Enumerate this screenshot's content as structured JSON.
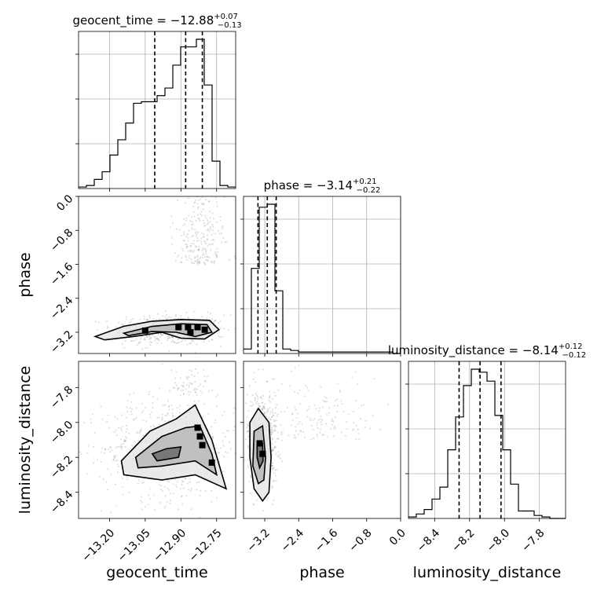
{
  "chart_data": {
    "type": "corner",
    "parameters": [
      "geocent_time",
      "phase",
      "luminosity_distance"
    ],
    "titles": {
      "geocent_time": {
        "name": "geocent_time",
        "median": "−12.88",
        "plus": "+0.07",
        "minus": "−0.13"
      },
      "phase": {
        "name": "phase",
        "median": "−3.14",
        "plus": "+0.21",
        "minus": "−0.22"
      },
      "luminosity_distance": {
        "name": "luminosity_distance",
        "median": "−8.14",
        "plus": "+0.12",
        "minus": "−0.12"
      }
    },
    "axes": {
      "geocent_time": {
        "label": "geocent_time",
        "range": [
          -13.33,
          -12.67
        ],
        "ticks": [
          -13.2,
          -13.05,
          -12.9,
          -12.75
        ],
        "tick_labels": [
          "−13.20",
          "−13.05",
          "−12.90",
          "−12.75"
        ]
      },
      "phase": {
        "label": "phase",
        "range": [
          -3.7,
          0.0
        ],
        "ticks": [
          -3.2,
          -2.4,
          -1.6,
          -0.8,
          0.0
        ],
        "tick_labels": [
          "−3.2",
          "−2.4",
          "−1.6",
          "−0.8",
          "0.0"
        ]
      },
      "luminosity_distance": {
        "label": "luminosity_distance",
        "range": [
          -8.55,
          -7.65
        ],
        "ticks": [
          -8.4,
          -8.2,
          -8.0,
          -7.8
        ],
        "tick_labels": [
          "−8.4",
          "−8.2",
          "−8.0",
          "−7.8"
        ]
      }
    },
    "histograms": {
      "geocent_time": {
        "bin_edges": [
          -13.33,
          -13.297,
          -13.264,
          -13.231,
          -13.198,
          -13.165,
          -13.132,
          -13.099,
          -13.066,
          -13.033,
          -13.0,
          -12.967,
          -12.934,
          -12.901,
          -12.868,
          -12.835,
          -12.802,
          -12.769,
          -12.736,
          -12.703,
          -12.67
        ],
        "counts": [
          0.01,
          0.02,
          0.06,
          0.11,
          0.22,
          0.32,
          0.43,
          0.56,
          0.57,
          0.57,
          0.61,
          0.66,
          0.81,
          0.93,
          0.93,
          0.98,
          0.68,
          0.18,
          0.02,
          0.01
        ],
        "quantiles": [
          -13.01,
          -12.88,
          -12.81
        ]
      },
      "phase": {
        "bin_edges": [
          -3.7,
          -3.515,
          -3.33,
          -3.145,
          -2.96,
          -2.775,
          -2.59,
          -2.405,
          -2.22,
          -2.035,
          -1.85,
          -1.665,
          -1.48,
          -1.295,
          -1.11,
          -0.925,
          -0.74,
          -0.555,
          -0.37,
          -0.185,
          0.0
        ],
        "counts": [
          0.03,
          0.57,
          0.98,
          1.0,
          0.42,
          0.03,
          0.02,
          0.01,
          0.01,
          0.01,
          0.01,
          0.01,
          0.01,
          0.01,
          0.01,
          0.01,
          0.01,
          0.01,
          0.01,
          0.0
        ],
        "quantiles": [
          -3.36,
          -3.14,
          -2.93
        ]
      },
      "luminosity_distance": {
        "bin_edges": [
          -8.55,
          -8.505,
          -8.46,
          -8.415,
          -8.37,
          -8.325,
          -8.28,
          -8.235,
          -8.19,
          -8.145,
          -8.1,
          -8.055,
          -8.01,
          -7.965,
          -7.92,
          -7.875,
          -7.83,
          -7.785,
          -7.74,
          -7.695,
          -7.65
        ],
        "counts": [
          0.01,
          0.03,
          0.06,
          0.13,
          0.21,
          0.46,
          0.68,
          0.89,
          1.0,
          0.98,
          0.92,
          0.69,
          0.46,
          0.23,
          0.05,
          0.05,
          0.02,
          0.01,
          0.0,
          0.0
        ],
        "quantiles": [
          -8.26,
          -8.14,
          -8.02
        ]
      }
    },
    "contours_2d": [
      {
        "x": "geocent_time",
        "y": "phase",
        "levels": [
          [
            [
              -13.26,
              -3.3
            ],
            [
              -13.14,
              -3.06
            ],
            [
              -13.02,
              -2.94
            ],
            [
              -12.9,
              -2.9
            ],
            [
              -12.78,
              -2.92
            ],
            [
              -12.74,
              -3.14
            ],
            [
              -12.8,
              -3.36
            ],
            [
              -12.9,
              -3.34
            ],
            [
              -12.98,
              -3.2
            ],
            [
              -13.1,
              -3.3
            ],
            [
              -13.22,
              -3.38
            ]
          ],
          [
            [
              -13.14,
              -3.22
            ],
            [
              -13.02,
              -3.06
            ],
            [
              -12.9,
              -3.0
            ],
            [
              -12.79,
              -3.02
            ],
            [
              -12.77,
              -3.2
            ],
            [
              -12.84,
              -3.3
            ],
            [
              -12.92,
              -3.2
            ],
            [
              -13.02,
              -3.18
            ],
            [
              -13.12,
              -3.28
            ]
          ]
        ],
        "dense_bins": [
          [
            -12.91,
            -3.08
          ],
          [
            -12.87,
            -3.08
          ],
          [
            -12.83,
            -3.08
          ],
          [
            -12.8,
            -3.14
          ],
          [
            -12.86,
            -3.2
          ],
          [
            -13.05,
            -3.16
          ]
        ]
      },
      {
        "x": "geocent_time",
        "y": "luminosity_distance",
        "levels": [
          [
            [
              -13.15,
              -8.22
            ],
            [
              -13.03,
              -8.05
            ],
            [
              -12.92,
              -7.98
            ],
            [
              -12.84,
              -7.9
            ],
            [
              -12.77,
              -8.1
            ],
            [
              -12.71,
              -8.38
            ],
            [
              -12.84,
              -8.3
            ],
            [
              -12.98,
              -8.33
            ],
            [
              -13.14,
              -8.3
            ]
          ],
          [
            [
              -13.09,
              -8.2
            ],
            [
              -12.98,
              -8.08
            ],
            [
              -12.88,
              -8.03
            ],
            [
              -12.82,
              -8.02
            ],
            [
              -12.77,
              -8.18
            ],
            [
              -12.75,
              -8.3
            ],
            [
              -12.84,
              -8.22
            ],
            [
              -12.98,
              -8.25
            ],
            [
              -13.08,
              -8.26
            ]
          ],
          [
            [
              -13.02,
              -8.18
            ],
            [
              -12.96,
              -8.15
            ],
            [
              -12.9,
              -8.14
            ],
            [
              -12.91,
              -8.2
            ],
            [
              -13.0,
              -8.22
            ]
          ]
        ],
        "dense_bins": [
          [
            -12.83,
            -8.03
          ],
          [
            -12.82,
            -8.08
          ],
          [
            -12.81,
            -8.13
          ],
          [
            -12.77,
            -8.23
          ]
        ]
      },
      {
        "x": "phase",
        "y": "luminosity_distance",
        "levels": [
          [
            [
              -3.55,
              -8.0
            ],
            [
              -3.35,
              -7.92
            ],
            [
              -3.1,
              -8.0
            ],
            [
              -3.05,
              -8.2
            ],
            [
              -3.1,
              -8.4
            ],
            [
              -3.25,
              -8.45
            ],
            [
              -3.45,
              -8.38
            ],
            [
              -3.55,
              -8.2
            ]
          ],
          [
            [
              -3.45,
              -8.05
            ],
            [
              -3.25,
              -8.02
            ],
            [
              -3.18,
              -8.2
            ],
            [
              -3.22,
              -8.33
            ],
            [
              -3.35,
              -8.35
            ],
            [
              -3.48,
              -8.25
            ]
          ],
          [
            [
              -3.38,
              -8.12
            ],
            [
              -3.25,
              -8.12
            ],
            [
              -3.24,
              -8.22
            ],
            [
              -3.32,
              -8.26
            ],
            [
              -3.38,
              -8.2
            ]
          ]
        ],
        "dense_bins": [
          [
            -3.25,
            -8.18
          ],
          [
            -3.32,
            -8.12
          ]
        ]
      }
    ],
    "grid": true
  }
}
